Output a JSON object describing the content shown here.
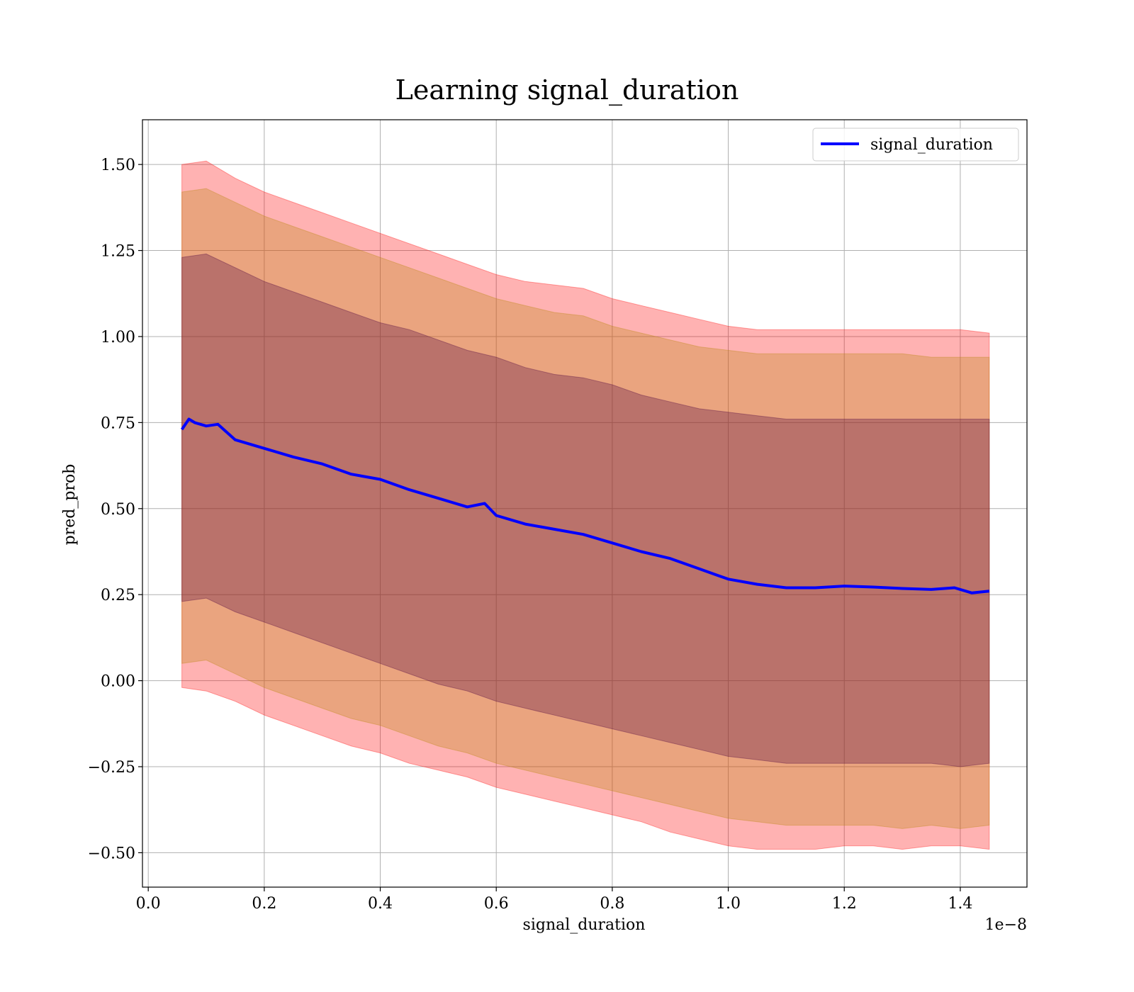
{
  "chart_data": {
    "type": "area",
    "title": "Learning signal_duration",
    "xlabel": "signal_duration",
    "ylabel": "pred_prob",
    "x_offset_label": "1e−8",
    "xlim": [
      -0.01,
      1.515
    ],
    "ylim": [
      -0.6,
      1.63
    ],
    "grid": true,
    "legend": {
      "position": "top-right",
      "entries": [
        "signal_duration"
      ]
    },
    "x_ticks": [
      0.0,
      0.2,
      0.4,
      0.6,
      0.8,
      1.0,
      1.2,
      1.4
    ],
    "x_tick_labels": [
      "0.0",
      "0.2",
      "0.4",
      "0.6",
      "0.8",
      "1.0",
      "1.2",
      "1.4"
    ],
    "y_ticks": [
      -0.5,
      -0.25,
      0.0,
      0.25,
      0.5,
      0.75,
      1.0,
      1.25,
      1.5
    ],
    "y_tick_labels": [
      "−0.50",
      "−0.25",
      "0.00",
      "0.25",
      "0.50",
      "0.75",
      "1.00",
      "1.25",
      "1.50"
    ],
    "colors": {
      "line": "#0000ff",
      "band_outer": "#ff0000",
      "band_middle": "#b8860b",
      "band_inner": "#4b0040"
    },
    "series": [
      {
        "name": "signal_duration",
        "x": [
          0.058,
          0.07,
          0.08,
          0.1,
          0.12,
          0.15,
          0.2,
          0.25,
          0.3,
          0.35,
          0.4,
          0.45,
          0.5,
          0.55,
          0.58,
          0.6,
          0.65,
          0.7,
          0.75,
          0.8,
          0.85,
          0.9,
          0.95,
          1.0,
          1.05,
          1.1,
          1.15,
          1.2,
          1.25,
          1.3,
          1.35,
          1.39,
          1.42,
          1.45
        ],
        "y": [
          0.73,
          0.76,
          0.75,
          0.74,
          0.745,
          0.7,
          0.675,
          0.65,
          0.63,
          0.6,
          0.585,
          0.555,
          0.53,
          0.505,
          0.515,
          0.48,
          0.455,
          0.44,
          0.425,
          0.4,
          0.375,
          0.355,
          0.325,
          0.295,
          0.28,
          0.27,
          0.27,
          0.275,
          0.272,
          0.268,
          0.265,
          0.27,
          0.255,
          0.26
        ]
      }
    ],
    "bands": [
      {
        "level": "outer",
        "x": [
          0.058,
          0.1,
          0.15,
          0.2,
          0.25,
          0.3,
          0.35,
          0.4,
          0.45,
          0.5,
          0.55,
          0.6,
          0.65,
          0.7,
          0.75,
          0.8,
          0.85,
          0.9,
          0.95,
          1.0,
          1.05,
          1.1,
          1.15,
          1.2,
          1.25,
          1.3,
          1.35,
          1.4,
          1.45
        ],
        "upper": [
          1.5,
          1.51,
          1.46,
          1.42,
          1.39,
          1.36,
          1.33,
          1.3,
          1.27,
          1.24,
          1.21,
          1.18,
          1.16,
          1.15,
          1.14,
          1.11,
          1.09,
          1.07,
          1.05,
          1.03,
          1.02,
          1.02,
          1.02,
          1.02,
          1.02,
          1.02,
          1.02,
          1.02,
          1.01
        ],
        "lower": [
          -0.02,
          -0.03,
          -0.06,
          -0.1,
          -0.13,
          -0.16,
          -0.19,
          -0.21,
          -0.24,
          -0.26,
          -0.28,
          -0.31,
          -0.33,
          -0.35,
          -0.37,
          -0.39,
          -0.41,
          -0.44,
          -0.46,
          -0.48,
          -0.49,
          -0.49,
          -0.49,
          -0.48,
          -0.48,
          -0.49,
          -0.48,
          -0.48,
          -0.49
        ]
      },
      {
        "level": "middle",
        "x": [
          0.058,
          0.1,
          0.15,
          0.2,
          0.25,
          0.3,
          0.35,
          0.4,
          0.45,
          0.5,
          0.55,
          0.6,
          0.65,
          0.7,
          0.75,
          0.8,
          0.85,
          0.9,
          0.95,
          1.0,
          1.05,
          1.1,
          1.15,
          1.2,
          1.25,
          1.3,
          1.35,
          1.4,
          1.45
        ],
        "upper": [
          1.42,
          1.43,
          1.39,
          1.35,
          1.32,
          1.29,
          1.26,
          1.23,
          1.2,
          1.17,
          1.14,
          1.11,
          1.09,
          1.07,
          1.06,
          1.03,
          1.01,
          0.99,
          0.97,
          0.96,
          0.95,
          0.95,
          0.95,
          0.95,
          0.95,
          0.95,
          0.94,
          0.94,
          0.94
        ],
        "lower": [
          0.05,
          0.06,
          0.02,
          -0.02,
          -0.05,
          -0.08,
          -0.11,
          -0.13,
          -0.16,
          -0.19,
          -0.21,
          -0.24,
          -0.26,
          -0.28,
          -0.3,
          -0.32,
          -0.34,
          -0.36,
          -0.38,
          -0.4,
          -0.41,
          -0.42,
          -0.42,
          -0.42,
          -0.42,
          -0.43,
          -0.42,
          -0.43,
          -0.42
        ]
      },
      {
        "level": "inner",
        "x": [
          0.058,
          0.1,
          0.15,
          0.2,
          0.25,
          0.3,
          0.35,
          0.4,
          0.45,
          0.5,
          0.55,
          0.6,
          0.65,
          0.7,
          0.75,
          0.8,
          0.85,
          0.9,
          0.95,
          1.0,
          1.05,
          1.1,
          1.15,
          1.2,
          1.25,
          1.3,
          1.35,
          1.4,
          1.45
        ],
        "upper": [
          1.23,
          1.24,
          1.2,
          1.16,
          1.13,
          1.1,
          1.07,
          1.04,
          1.02,
          0.99,
          0.96,
          0.94,
          0.91,
          0.89,
          0.88,
          0.86,
          0.83,
          0.81,
          0.79,
          0.78,
          0.77,
          0.76,
          0.76,
          0.76,
          0.76,
          0.76,
          0.76,
          0.76,
          0.76
        ],
        "lower": [
          0.23,
          0.24,
          0.2,
          0.17,
          0.14,
          0.11,
          0.08,
          0.05,
          0.02,
          -0.01,
          -0.03,
          -0.06,
          -0.08,
          -0.1,
          -0.12,
          -0.14,
          -0.16,
          -0.18,
          -0.2,
          -0.22,
          -0.23,
          -0.24,
          -0.24,
          -0.24,
          -0.24,
          -0.24,
          -0.24,
          -0.25,
          -0.24
        ]
      }
    ]
  }
}
